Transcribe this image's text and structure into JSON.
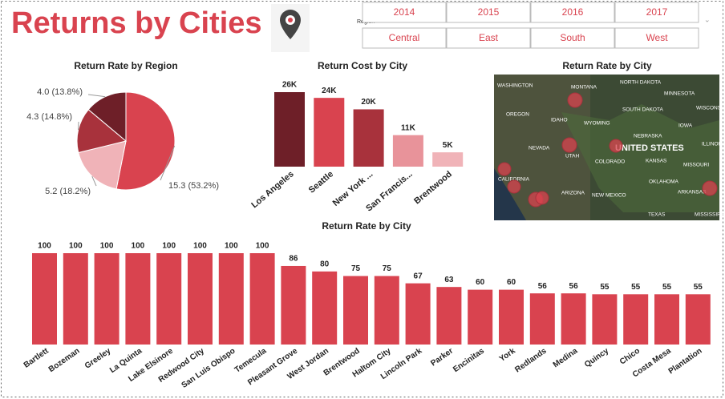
{
  "header": {
    "title": "Returns by Cities"
  },
  "slicer": {
    "label": "Region",
    "years": [
      "2014",
      "2015",
      "2016",
      "2017"
    ],
    "regions": [
      "Central",
      "East",
      "South",
      "West"
    ]
  },
  "chart_data": [
    {
      "type": "pie",
      "title": "Return Rate by Region",
      "values": [
        15.3,
        5.2,
        4.3,
        4.0
      ],
      "value_labels": [
        "15.3 (53.2%)",
        "5.2 (18.2%)",
        "4.3 (14.8%)",
        "4.0 (13.8%)"
      ],
      "colors": [
        "#d9434f",
        "#f0b3b8",
        "#a8323c",
        "#6e1f28"
      ]
    },
    {
      "type": "bar",
      "title": "Return Cost by City",
      "categories": [
        "Los Angeles",
        "Seattle",
        "New York ...",
        "San Francis...",
        "Brentwood"
      ],
      "values": [
        26000,
        24000,
        20000,
        11000,
        5000
      ],
      "value_labels": [
        "26K",
        "24K",
        "20K",
        "11K",
        "5K"
      ],
      "colors": [
        "#6e1f28",
        "#d9434f",
        "#a8323c",
        "#e8939a",
        "#f0b3b8"
      ]
    },
    {
      "type": "bar",
      "title": "Return Rate by City",
      "categories": [
        "Bartlett",
        "Bozeman",
        "Greeley",
        "La Quinta",
        "Lake Elsinore",
        "Redwood City",
        "San Luis Obispo",
        "Temecula",
        "Pleasant Grove",
        "West Jordan",
        "Brentwood",
        "Haltom City",
        "Lincoln Park",
        "Parker",
        "Encinitas",
        "York",
        "Redlands",
        "Medina",
        "Quincy",
        "Chico",
        "Costa Mesa",
        "Plantation"
      ],
      "values": [
        100,
        100,
        100,
        100,
        100,
        100,
        100,
        100,
        86,
        80,
        75,
        75,
        67,
        63,
        60,
        60,
        56,
        56,
        55,
        55,
        55,
        55
      ],
      "color": "#d9434f"
    }
  ],
  "map": {
    "title": "Return Rate by City",
    "labels": [
      "WASHINGTON",
      "MONTANA",
      "NORTH DAKOTA",
      "MINNESOTA",
      "OREGON",
      "IDAHO",
      "SOUTH DAKOTA",
      "WISCONS",
      "WYOMING",
      "NEBRASKA",
      "IOWA",
      "NEVADA",
      "UNITED STATES",
      "ILLINOIS",
      "UTAH",
      "COLORADO",
      "KANSAS",
      "MISSOURI",
      "CALIFORNIA",
      "ARIZONA",
      "NEW MEXICO",
      "OKLAHOMA",
      "ARKANSAS",
      "TEXAS",
      "MISSISSIPPI"
    ]
  }
}
